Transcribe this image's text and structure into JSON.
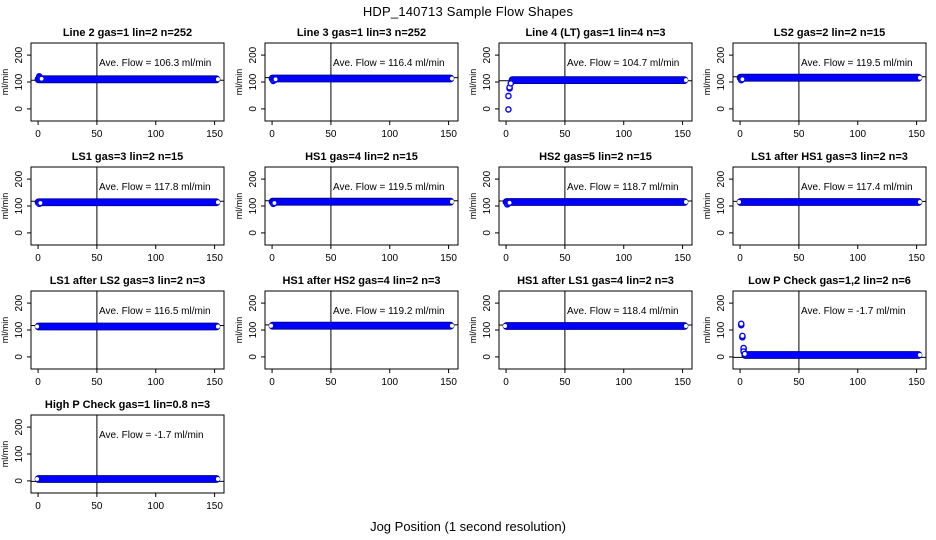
{
  "figure": {
    "title": "HDP_140713  Sample Flow Shapes",
    "xlabel": "Jog Position (1 second resolution)",
    "ylabel": "ml/min",
    "colors": {
      "point_blue": "#0000ff",
      "band_edge": "#000080",
      "axis_black": "#000000",
      "end_dot": "#fffff0",
      "background": "#ffffff"
    }
  },
  "axes": {
    "x_ticks": [
      0,
      50,
      100,
      150
    ],
    "y_ticks": [
      0,
      100,
      200
    ],
    "x_range": [
      -6,
      158
    ],
    "y_range": [
      -45,
      245
    ],
    "vline_x": 50
  },
  "chart_data": [
    {
      "type": "scatter",
      "title": "Line 2 gas=1 lin=2 n=252",
      "annotation": "Ave. Flow =  106.3  ml/min",
      "ave_flow": 106.3,
      "steady_flow": 110,
      "band_x": [
        0,
        152
      ],
      "vline_x": 50,
      "end_dots": "right",
      "transient_points": [
        [
          1,
          121
        ],
        [
          1.5,
          118
        ],
        [
          2,
          115
        ],
        [
          3,
          112
        ]
      ]
    },
    {
      "type": "scatter",
      "title": "Line 3 gas=1 lin=3 n=252",
      "annotation": "Ave. Flow =  116.4  ml/min",
      "ave_flow": 116.4,
      "steady_flow": 113,
      "band_x": [
        0,
        152
      ],
      "vline_x": 50,
      "end_dots": "right",
      "transient_points": [
        [
          1,
          104
        ],
        [
          2,
          107
        ],
        [
          3,
          110
        ]
      ]
    },
    {
      "type": "scatter",
      "title": "Line 4 (LT) gas=1 lin=4 n=3",
      "annotation": "Ave. Flow =  104.7  ml/min",
      "ave_flow": 104.7,
      "steady_flow": 107,
      "band_x": [
        5,
        152
      ],
      "vline_x": 50,
      "end_dots": "right",
      "transient_points": [
        [
          2,
          -2
        ],
        [
          2,
          48
        ],
        [
          3,
          76
        ],
        [
          3,
          80
        ],
        [
          4,
          95
        ]
      ]
    },
    {
      "type": "scatter",
      "title": "LS2 gas=2 lin=2 n=15",
      "annotation": "Ave. Flow =  119.5  ml/min",
      "ave_flow": 119.5,
      "steady_flow": 116,
      "band_x": [
        0,
        152
      ],
      "vline_x": 50,
      "end_dots": "right",
      "transient_points": [
        [
          1,
          107
        ],
        [
          2,
          110
        ]
      ]
    },
    {
      "type": "scatter",
      "title": "LS1 gas=3 lin=2 n=15",
      "annotation": "Ave. Flow =  117.8  ml/min",
      "ave_flow": 117.8,
      "steady_flow": 114,
      "band_x": [
        0,
        152
      ],
      "vline_x": 50,
      "end_dots": "right",
      "transient_points": [
        [
          1,
          108
        ],
        [
          2,
          111
        ]
      ]
    },
    {
      "type": "scatter",
      "title": "HS1 gas=4 lin=2 n=15",
      "annotation": "Ave. Flow =  119.5  ml/min",
      "ave_flow": 119.5,
      "steady_flow": 116,
      "band_x": [
        0,
        152
      ],
      "vline_x": 50,
      "end_dots": "right",
      "transient_points": [
        [
          1,
          108
        ],
        [
          2,
          111
        ]
      ]
    },
    {
      "type": "scatter",
      "title": "HS2 gas=5 lin=2 n=15",
      "annotation": "Ave. Flow =  118.7  ml/min",
      "ave_flow": 118.7,
      "steady_flow": 115,
      "band_x": [
        0,
        152
      ],
      "vline_x": 50,
      "end_dots": "right",
      "transient_points": [
        [
          1,
          106
        ],
        [
          2,
          109
        ],
        [
          3,
          112
        ]
      ]
    },
    {
      "type": "scatter",
      "title": "LS1 after HS1 gas=3 lin=2 n=3",
      "annotation": "Ave. Flow =  117.4  ml/min",
      "ave_flow": 117.4,
      "steady_flow": 115,
      "band_x": [
        0,
        152
      ],
      "vline_x": 50,
      "end_dots": "both",
      "transient_points": []
    },
    {
      "type": "scatter",
      "title": "LS1 after LS2 gas=3 lin=2 n=3",
      "annotation": "Ave. Flow =  116.5  ml/min",
      "ave_flow": 116.5,
      "steady_flow": 113,
      "band_x": [
        0,
        152
      ],
      "vline_x": 50,
      "end_dots": "both",
      "transient_points": []
    },
    {
      "type": "scatter",
      "title": "HS1 after HS2 gas=4 lin=2 n=3",
      "annotation": "Ave. Flow =  119.2  ml/min",
      "ave_flow": 119.2,
      "steady_flow": 116,
      "band_x": [
        0,
        152
      ],
      "vline_x": 50,
      "end_dots": "both",
      "transient_points": []
    },
    {
      "type": "scatter",
      "title": "HS1 after LS1 gas=4 lin=2 n=3",
      "annotation": "Ave. Flow =  118.4  ml/min",
      "ave_flow": 118.4,
      "steady_flow": 115,
      "band_x": [
        0,
        152
      ],
      "vline_x": 50,
      "end_dots": "both",
      "transient_points": []
    },
    {
      "type": "scatter",
      "title": "Low P Check gas=1,2 lin=2 n=6",
      "annotation": "Ave. Flow =  -1.7  ml/min",
      "ave_flow": -1.7,
      "steady_flow": 7,
      "band_x": [
        4,
        152
      ],
      "vline_x": 50,
      "end_dots": "right",
      "transient_points": [
        [
          1,
          118
        ],
        [
          1,
          123
        ],
        [
          2,
          73
        ],
        [
          2,
          78
        ],
        [
          3,
          28
        ],
        [
          3,
          33
        ],
        [
          3,
          20
        ],
        [
          4,
          11
        ]
      ]
    },
    {
      "type": "scatter",
      "title": "High P Check gas=1 lin=0.8 n=3",
      "annotation": "Ave. Flow =  -1.7  ml/min",
      "ave_flow": -1.7,
      "steady_flow": 7,
      "band_x": [
        0,
        152
      ],
      "vline_x": 50,
      "end_dots": "both",
      "transient_points": []
    }
  ]
}
